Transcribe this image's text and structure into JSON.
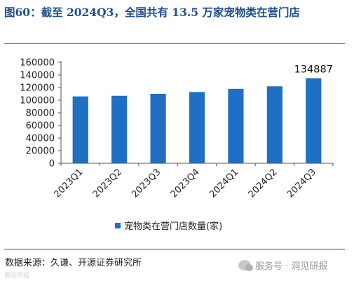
{
  "figure": {
    "title": "图60：截至 2024Q3，全国共有 13.5 万家宠物类在营门店",
    "source": "数据来源：久谦、开源证券研究所",
    "watermark": "服务号 · 洞见研报",
    "watermark_left": "洞见研报"
  },
  "colors": {
    "bar": "#1f6fc4",
    "title": "#1f4e8c",
    "axis": "#555555"
  },
  "chart_data": {
    "type": "bar",
    "categories": [
      "2023Q1",
      "2023Q2",
      "2023Q3",
      "2023Q4",
      "2024Q1",
      "2024Q2",
      "2024Q3"
    ],
    "series": [
      {
        "name": "宠物类在营门店数量(家)",
        "values": [
          106000,
          107000,
          110000,
          113000,
          118000,
          122000,
          134887
        ]
      }
    ],
    "yticks": [
      "0",
      "20000",
      "40000",
      "60000",
      "80000",
      "100000",
      "120000",
      "140000",
      "160000"
    ],
    "ylim": [
      0,
      160000
    ],
    "data_labels": [
      {
        "index": 6,
        "text": "134887"
      }
    ],
    "legend_position": "bottom",
    "grid": false
  }
}
